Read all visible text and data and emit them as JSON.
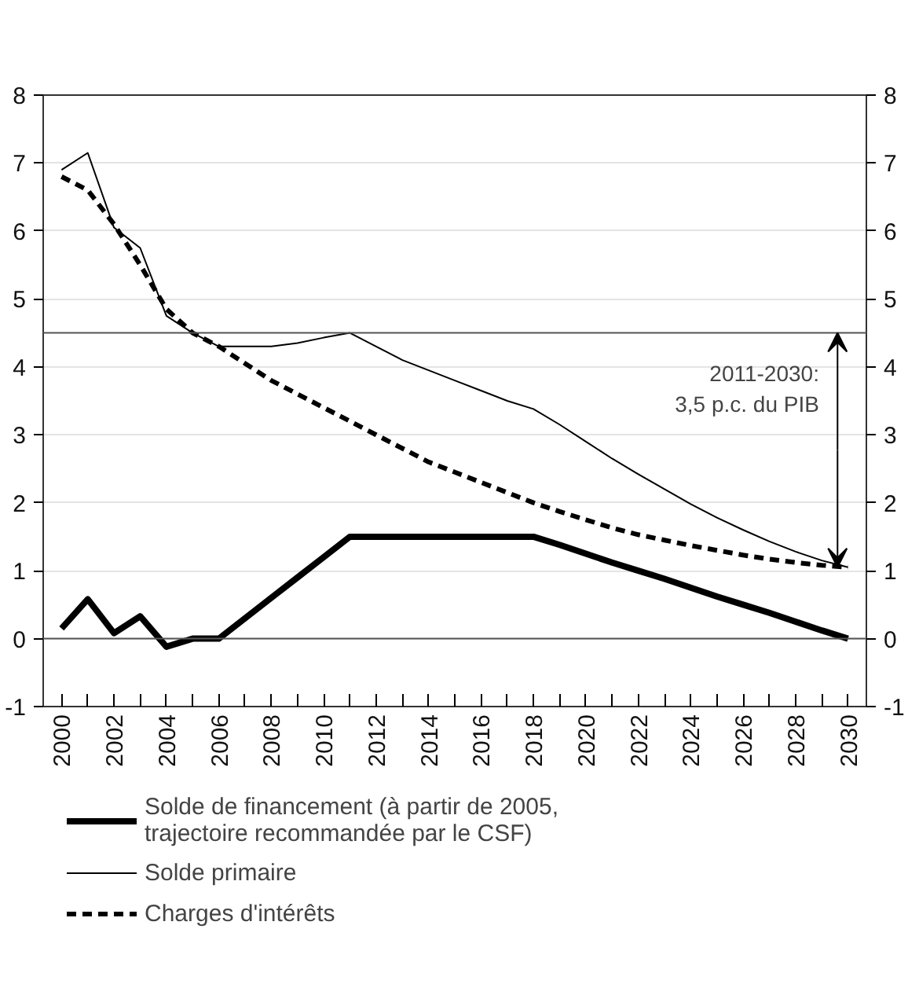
{
  "chart_data": {
    "type": "line",
    "x": [
      2000,
      2001,
      2002,
      2003,
      2004,
      2005,
      2006,
      2007,
      2008,
      2009,
      2010,
      2011,
      2012,
      2013,
      2014,
      2015,
      2016,
      2017,
      2018,
      2019,
      2020,
      2021,
      2022,
      2023,
      2024,
      2025,
      2026,
      2027,
      2028,
      2029,
      2030
    ],
    "series": [
      {
        "name": "Solde de financement (à partir de 2005, trajectoire recommandée par le CSF)",
        "color": "#000000",
        "line_style": "solid",
        "values": [
          0.15,
          0.58,
          0.08,
          0.33,
          -0.12,
          0.0,
          0.0,
          0.3,
          0.6,
          0.9,
          1.2,
          1.5,
          1.5,
          1.5,
          1.5,
          1.5,
          1.5,
          1.5,
          1.5,
          1.38,
          1.25,
          1.12,
          1.0,
          0.88,
          0.75,
          0.62,
          0.5,
          0.38,
          0.25,
          0.12,
          0.0
        ]
      },
      {
        "name": "Solde primaire",
        "color": "#000000",
        "line_style": "solid",
        "values": [
          6.9,
          7.15,
          6.05,
          5.75,
          4.75,
          4.5,
          4.3,
          4.3,
          4.3,
          4.35,
          4.43,
          4.5,
          4.3,
          4.1,
          3.95,
          3.8,
          3.65,
          3.5,
          3.38,
          3.15,
          2.9,
          2.65,
          2.42,
          2.2,
          1.98,
          1.78,
          1.6,
          1.43,
          1.28,
          1.15,
          1.05
        ]
      },
      {
        "name": "Charges d'intérêts",
        "color": "#000000",
        "line_style": "dashed",
        "values": [
          6.8,
          6.6,
          6.1,
          5.5,
          4.85,
          4.5,
          4.3,
          4.05,
          3.8,
          3.6,
          3.4,
          3.2,
          3.0,
          2.8,
          2.6,
          2.45,
          2.3,
          2.15,
          2.0,
          1.87,
          1.75,
          1.63,
          1.53,
          1.45,
          1.37,
          1.3,
          1.23,
          1.17,
          1.12,
          1.08,
          1.05
        ]
      }
    ],
    "xlim": [
      1999.3,
      2030.7
    ],
    "xticks": [
      2000,
      {
        "value": 2001,
        "label": null
      },
      2002,
      {
        "value": 2003,
        "label": null
      },
      2004,
      {
        "value": 2005,
        "label": null
      },
      2006,
      {
        "value": 2007,
        "label": null
      },
      2008,
      {
        "value": 2009,
        "label": null
      },
      2010,
      {
        "value": 2011,
        "label": null
      },
      2012,
      {
        "value": 2013,
        "label": null
      },
      2014,
      {
        "value": 2015,
        "label": null
      },
      2016,
      {
        "value": 2017,
        "label": null
      },
      2018,
      {
        "value": 2019,
        "label": null
      },
      2020,
      {
        "value": 2021,
        "label": null
      },
      2022,
      {
        "value": 2023,
        "label": null
      },
      2024,
      {
        "value": 2025,
        "label": null
      },
      2026,
      {
        "value": 2027,
        "label": null
      },
      2028,
      {
        "value": 2029,
        "label": null
      },
      2030
    ],
    "ylim": [
      -1,
      8
    ],
    "yticks": [
      -1,
      0,
      1,
      2,
      3,
      4,
      5,
      6,
      7,
      8
    ],
    "y2lim": [
      -1,
      8
    ],
    "y2ticks": [
      -1,
      0,
      1,
      2,
      3,
      4,
      5,
      6,
      7,
      8
    ],
    "grid": "y",
    "ref_lines": [
      {
        "axis": "y",
        "value": 0,
        "color": "#555555"
      },
      {
        "axis": "y",
        "value": 4.5,
        "color": "#555555"
      }
    ],
    "annotations": [
      "1",
      "2011-2030:\n3,5 p.c. du PIB"
    ],
    "legend": "bottom"
  }
}
